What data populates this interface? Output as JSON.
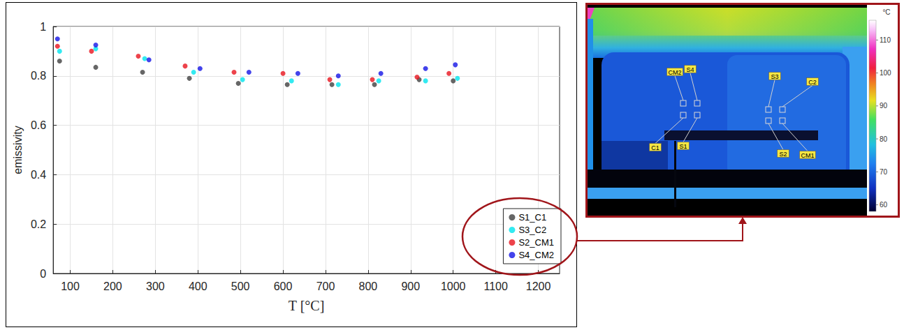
{
  "chart_data": {
    "type": "scatter",
    "xlabel": "T [°C]",
    "ylabel": "emissivity",
    "xlim": [
      60,
      1250
    ],
    "xticks": [
      100,
      200,
      300,
      400,
      500,
      600,
      700,
      800,
      900,
      1000,
      1100,
      1200
    ],
    "ylim": [
      0,
      1
    ],
    "yticks": [
      0,
      0.2,
      0.4,
      0.6,
      0.8,
      1
    ],
    "grid": true,
    "legend": "lower right",
    "marker": "circle",
    "series": [
      {
        "name": "S1_C1",
        "color": "#404040",
        "x": [
          75,
          160,
          270,
          380,
          495,
          610,
          715,
          815,
          920,
          1000
        ],
        "values": [
          0.86,
          0.835,
          0.815,
          0.79,
          0.77,
          0.765,
          0.765,
          0.765,
          0.785,
          0.78
        ]
      },
      {
        "name": "S3_C2",
        "color": "#00e5ee",
        "x": [
          75,
          160,
          275,
          390,
          505,
          620,
          730,
          825,
          935,
          1010
        ],
        "values": [
          0.9,
          0.91,
          0.87,
          0.815,
          0.785,
          0.78,
          0.765,
          0.78,
          0.78,
          0.79
        ]
      },
      {
        "name": "S2_CM1",
        "color": "#e8141e",
        "x": [
          70,
          150,
          260,
          370,
          485,
          600,
          710,
          810,
          915,
          990
        ],
        "values": [
          0.92,
          0.9,
          0.88,
          0.84,
          0.815,
          0.81,
          0.785,
          0.785,
          0.795,
          0.81
        ]
      },
      {
        "name": "S4_CM2",
        "color": "#1414e6",
        "x": [
          70,
          160,
          285,
          405,
          520,
          635,
          730,
          830,
          935,
          1005
        ],
        "values": [
          0.95,
          0.925,
          0.865,
          0.83,
          0.815,
          0.81,
          0.8,
          0.81,
          0.83,
          0.845
        ]
      }
    ]
  },
  "thermal_image": {
    "colorbar": {
      "title": "°C",
      "range": [
        58,
        116
      ],
      "ticks": [
        60,
        70,
        80,
        90,
        100,
        110
      ]
    },
    "probes": [
      "CM2",
      "S4",
      "S3",
      "C2",
      "C1",
      "S1",
      "S2",
      "CM1"
    ]
  }
}
